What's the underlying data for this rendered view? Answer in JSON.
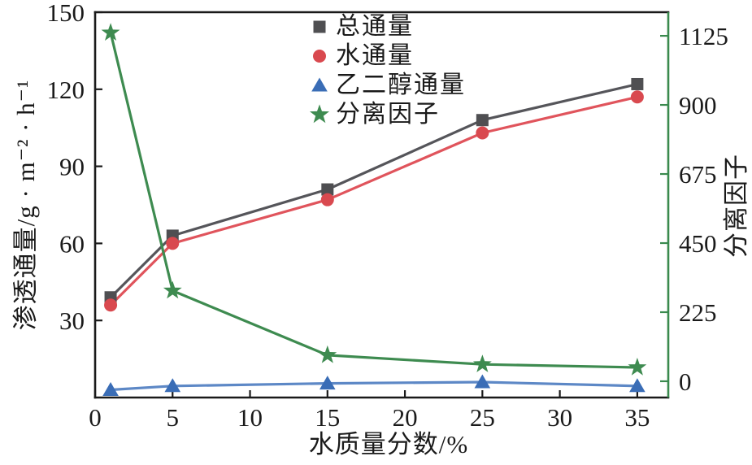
{
  "figure": {
    "background": "#ffffff",
    "text_color": "#1a1a1a"
  },
  "chart_data": {
    "type": "line",
    "title": "",
    "xlabel": "水质量分数/%",
    "ylabel_left": "渗透通量/g · m⁻² · h⁻¹",
    "ylabel_right": "分离因子",
    "x": [
      1,
      5,
      15,
      25,
      35
    ],
    "x_ticks": [
      0,
      5,
      10,
      15,
      20,
      25,
      30,
      35
    ],
    "xlim": [
      0,
      37
    ],
    "left_ticks": [
      30,
      60,
      90,
      120,
      150
    ],
    "left_lim": [
      0,
      150
    ],
    "right_ticks": [
      0,
      225,
      450,
      675,
      900,
      1125
    ],
    "right_lim": [
      -53,
      1202
    ],
    "right_axis_color": "#3a8a4e",
    "grid": false,
    "legend_position": "upper center",
    "series": [
      {
        "name": "总通量",
        "axis": "left",
        "marker": "square",
        "marker_color": "#4f4f52",
        "line_color": "#55555a",
        "values": [
          39,
          63,
          81,
          108,
          122
        ]
      },
      {
        "name": "水通量",
        "axis": "left",
        "marker": "circle",
        "marker_color": "#d9494f",
        "line_color": "#e0545c",
        "values": [
          36,
          60,
          77,
          103,
          117
        ]
      },
      {
        "name": "乙二醇通量",
        "axis": "left",
        "marker": "triangle",
        "marker_color": "#3a6db6",
        "line_color": "#5d88c6",
        "values": [
          3,
          4.5,
          5.5,
          6,
          4.5
        ]
      },
      {
        "name": "分离因子",
        "axis": "right",
        "marker": "star",
        "marker_color": "#3e8b50",
        "line_color": "#3e8b50",
        "values": [
          1135,
          295,
          85,
          55,
          45
        ]
      }
    ]
  }
}
